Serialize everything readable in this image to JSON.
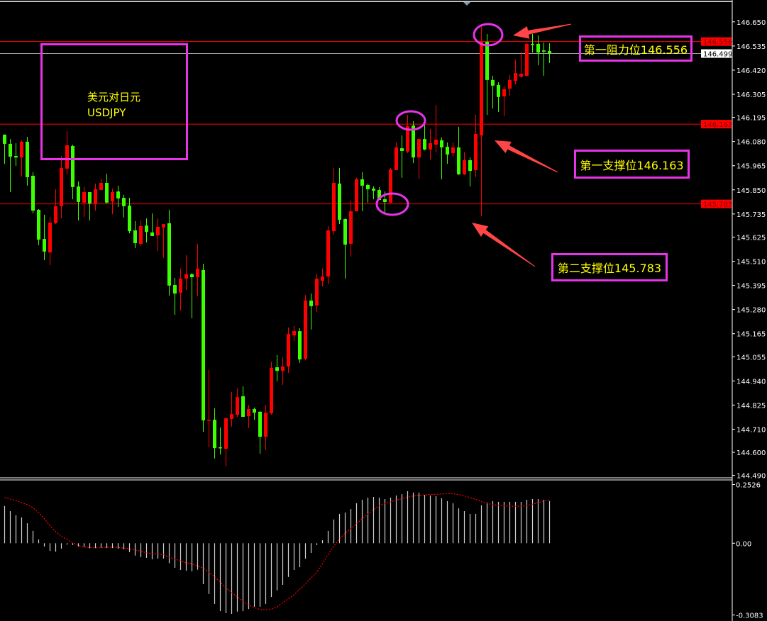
{
  "symbol": {
    "name_cn": "美元对日元",
    "ticker": "USDJPY"
  },
  "annotations": {
    "resistance_1": {
      "label": "第一阻力位146.556",
      "price": 146.556
    },
    "support_1": {
      "label": "第一支撑位146.163",
      "price": 146.163
    },
    "support_2": {
      "label": "第二支撑位145.783",
      "price": 145.783
    }
  },
  "colors": {
    "background": "#000000",
    "bull_candle": "#ff0000",
    "bear_candle": "#3cff00",
    "level_line": "#ff0000",
    "bid_line": "#a0a0a0",
    "annotation_box": "#e834e8",
    "annotation_text": "#ffff00",
    "arrow": "#ff4545",
    "macd_histogram": "#d0d0d0",
    "macd_signal": "#ff0000",
    "axis_text": "#ffffff"
  },
  "chart_data": [
    {
      "type": "candlestick",
      "symbol": "USDJPY",
      "ylim": [
        144.482,
        146.754
      ],
      "y_ticks": [
        146.65,
        146.535,
        146.42,
        146.305,
        146.195,
        146.08,
        145.965,
        145.85,
        145.735,
        145.625,
        145.51,
        145.395,
        145.28,
        145.165,
        145.055,
        144.94,
        144.825,
        144.71,
        144.6,
        144.49
      ],
      "price_tags": [
        {
          "value": "146.556",
          "style": "red"
        },
        {
          "value": "146.499",
          "style": "white"
        },
        {
          "value": "146.163",
          "style": "red"
        },
        {
          "value": "145.783",
          "style": "red"
        }
      ],
      "horizontal_lines": [
        {
          "price": 146.556,
          "color": "#ff0000"
        },
        {
          "price": 146.499,
          "color": "#a0a0a0"
        },
        {
          "price": 146.163,
          "color": "#ff0000"
        },
        {
          "price": 145.783,
          "color": "#ff0000"
        }
      ],
      "ohlc_fields": [
        "open",
        "high",
        "low",
        "close"
      ],
      "candles": [
        [
          146.113,
          146.113,
          145.974,
          146.069
        ],
        [
          146.069,
          146.092,
          145.839,
          146.008
        ],
        [
          146.011,
          146.072,
          145.964,
          146.004
        ],
        [
          146.004,
          146.086,
          145.913,
          146.079
        ],
        [
          146.079,
          146.102,
          145.87,
          145.91
        ],
        [
          145.917,
          145.934,
          145.738,
          145.751
        ],
        [
          145.755,
          145.758,
          145.586,
          145.613
        ],
        [
          145.616,
          145.731,
          145.515,
          145.556
        ],
        [
          145.552,
          145.721,
          145.491,
          145.694
        ],
        [
          145.691,
          145.853,
          145.687,
          145.772
        ],
        [
          145.772,
          146.011,
          145.714,
          145.954
        ],
        [
          145.951,
          146.129,
          145.924,
          146.062
        ],
        [
          146.059,
          146.065,
          145.805,
          145.863
        ],
        [
          145.866,
          145.89,
          145.704,
          145.792
        ],
        [
          145.789,
          145.863,
          145.721,
          145.839
        ],
        [
          145.839,
          145.839,
          145.704,
          145.785
        ],
        [
          145.785,
          145.88,
          145.751,
          145.853
        ],
        [
          145.849,
          145.903,
          145.849,
          145.883
        ],
        [
          145.883,
          145.927,
          145.785,
          145.789
        ],
        [
          145.795,
          145.856,
          145.734,
          145.839
        ],
        [
          145.842,
          145.87,
          145.768,
          145.809
        ],
        [
          145.812,
          145.826,
          145.718,
          145.772
        ],
        [
          145.775,
          145.812,
          145.643,
          145.653
        ],
        [
          145.657,
          145.701,
          145.572,
          145.596
        ],
        [
          145.593,
          145.704,
          145.583,
          145.677
        ],
        [
          145.68,
          145.714,
          145.599,
          145.65
        ],
        [
          145.647,
          145.738,
          145.63,
          145.63
        ],
        [
          145.633,
          145.714,
          145.559,
          145.674
        ],
        [
          145.67,
          145.687,
          145.525,
          145.687
        ],
        [
          145.691,
          145.755,
          145.346,
          145.394
        ],
        [
          145.397,
          145.431,
          145.255,
          145.356
        ],
        [
          145.36,
          145.475,
          145.275,
          145.427
        ],
        [
          145.427,
          145.539,
          145.373,
          145.448
        ],
        [
          145.448,
          145.454,
          145.238,
          145.434
        ],
        [
          145.434,
          145.593,
          145.343,
          145.475
        ],
        [
          145.468,
          145.498,
          144.698,
          144.752
        ],
        [
          144.752,
          144.992,
          144.624,
          144.755
        ],
        [
          144.755,
          144.809,
          144.57,
          144.62
        ],
        [
          144.624,
          144.718,
          144.59,
          144.62
        ],
        [
          144.617,
          144.766,
          144.533,
          144.762
        ],
        [
          144.759,
          144.887,
          144.722,
          144.782
        ],
        [
          144.779,
          144.904,
          144.769,
          144.863
        ],
        [
          144.867,
          144.914,
          144.769,
          144.769
        ],
        [
          144.772,
          144.826,
          144.715,
          144.806
        ],
        [
          144.806,
          144.813,
          144.755,
          144.789
        ],
        [
          144.793,
          144.796,
          144.593,
          144.674
        ],
        [
          144.674,
          144.826,
          144.61,
          144.789
        ],
        [
          144.786,
          145.032,
          144.779,
          145.002
        ],
        [
          145.005,
          145.063,
          144.938,
          144.988
        ],
        [
          144.988,
          145.053,
          144.921,
          145.009
        ],
        [
          145.009,
          145.194,
          144.978,
          145.164
        ],
        [
          145.157,
          145.201,
          145.13,
          145.177
        ],
        [
          145.177,
          145.191,
          145.025,
          145.042
        ],
        [
          145.046,
          145.35,
          145.039,
          145.323
        ],
        [
          145.323,
          145.356,
          145.184,
          145.296
        ],
        [
          145.299,
          145.451,
          145.269,
          145.427
        ],
        [
          145.417,
          145.475,
          145.39,
          145.437
        ],
        [
          145.437,
          145.677,
          145.4,
          145.657
        ],
        [
          145.653,
          145.954,
          145.637,
          145.883
        ],
        [
          145.88,
          145.954,
          145.687,
          145.707
        ],
        [
          145.711,
          145.714,
          145.427,
          145.589
        ],
        [
          145.593,
          145.799,
          145.532,
          145.748
        ],
        [
          145.748,
          145.907,
          145.748,
          145.9
        ],
        [
          145.9,
          145.934,
          145.748,
          145.87
        ],
        [
          145.873,
          145.88,
          145.789,
          145.853
        ],
        [
          145.856,
          145.866,
          145.805,
          145.846
        ],
        [
          145.849,
          145.863,
          145.802,
          145.802
        ],
        [
          145.805,
          145.842,
          145.741,
          145.792
        ],
        [
          145.789,
          145.954,
          145.785,
          145.947
        ],
        [
          145.944,
          146.075,
          145.944,
          146.052
        ],
        [
          146.048,
          146.109,
          145.907,
          146.035
        ],
        [
          146.032,
          146.207,
          146.025,
          146.153
        ],
        [
          146.156,
          146.177,
          145.977,
          146.004
        ],
        [
          146.004,
          146.092,
          145.903,
          146.092
        ],
        [
          146.092,
          146.16,
          146.038,
          146.042
        ],
        [
          146.042,
          146.14,
          145.994,
          146.072
        ],
        [
          146.065,
          146.254,
          146.028,
          146.089
        ],
        [
          146.086,
          146.099,
          145.9,
          146.052
        ],
        [
          146.055,
          146.075,
          145.974,
          146.018
        ],
        [
          146.025,
          146.075,
          146.008,
          146.052
        ],
        [
          146.052,
          146.15,
          145.92,
          145.924
        ],
        [
          145.924,
          146.028,
          145.92,
          145.991
        ],
        [
          145.991,
          146.004,
          145.866,
          145.94
        ],
        [
          145.944,
          146.207,
          145.91,
          146.116
        ],
        [
          146.109,
          146.626,
          145.724,
          146.558
        ],
        [
          146.555,
          146.592,
          146.207,
          146.373
        ],
        [
          146.373,
          146.393,
          146.237,
          146.346
        ],
        [
          146.349,
          146.362,
          146.221,
          146.292
        ],
        [
          146.295,
          146.342,
          146.2,
          146.329
        ],
        [
          146.332,
          146.396,
          146.298,
          146.373
        ],
        [
          146.369,
          146.47,
          146.352,
          146.406
        ],
        [
          146.389,
          146.508,
          146.383,
          146.403
        ],
        [
          146.393,
          146.551,
          146.389,
          146.545
        ],
        [
          146.545,
          146.592,
          146.504,
          146.541
        ],
        [
          146.545,
          146.585,
          146.443,
          146.504
        ],
        [
          146.514,
          146.551,
          146.393,
          146.508
        ],
        [
          146.511,
          146.548,
          146.454,
          146.499
        ]
      ]
    },
    {
      "type": "bar+line",
      "indicator": "MACD",
      "ylim": [
        -0.3083,
        0.2526
      ],
      "y_ticks": [
        "0.2526",
        "0.00",
        "-0.3083"
      ],
      "histogram": [
        0.16,
        0.138,
        0.12,
        0.111,
        0.086,
        0.053,
        0.016,
        -0.014,
        -0.033,
        -0.036,
        -0.023,
        -0.006,
        -0.008,
        -0.014,
        -0.015,
        -0.022,
        -0.021,
        -0.019,
        -0.021,
        -0.021,
        -0.023,
        -0.026,
        -0.038,
        -0.053,
        -0.06,
        -0.063,
        -0.069,
        -0.066,
        -0.066,
        -0.086,
        -0.106,
        -0.115,
        -0.118,
        -0.121,
        -0.114,
        -0.176,
        -0.218,
        -0.261,
        -0.292,
        -0.301,
        -0.304,
        -0.294,
        -0.292,
        -0.283,
        -0.273,
        -0.273,
        -0.261,
        -0.231,
        -0.203,
        -0.179,
        -0.145,
        -0.115,
        -0.103,
        -0.066,
        -0.042,
        -0.008,
        0.013,
        0.053,
        0.102,
        0.126,
        0.132,
        0.147,
        0.172,
        0.187,
        0.196,
        0.199,
        0.196,
        0.19,
        0.196,
        0.205,
        0.211,
        0.224,
        0.218,
        0.218,
        0.208,
        0.205,
        0.202,
        0.193,
        0.181,
        0.172,
        0.15,
        0.138,
        0.126,
        0.126,
        0.163,
        0.175,
        0.181,
        0.178,
        0.178,
        0.178,
        0.178,
        0.178,
        0.187,
        0.19,
        0.19,
        0.187,
        0.181
      ],
      "signal": [
        0.197,
        0.19,
        0.183,
        0.175,
        0.166,
        0.153,
        0.132,
        0.105,
        0.075,
        0.05,
        0.03,
        0.016,
        0.002,
        -0.01,
        -0.016,
        -0.019,
        -0.02,
        -0.019,
        -0.017,
        -0.017,
        -0.018,
        -0.021,
        -0.024,
        -0.029,
        -0.034,
        -0.041,
        -0.045,
        -0.046,
        -0.049,
        -0.06,
        -0.068,
        -0.076,
        -0.084,
        -0.089,
        -0.097,
        -0.108,
        -0.124,
        -0.144,
        -0.168,
        -0.192,
        -0.212,
        -0.231,
        -0.249,
        -0.265,
        -0.277,
        -0.285,
        -0.287,
        -0.283,
        -0.274,
        -0.255,
        -0.239,
        -0.221,
        -0.198,
        -0.175,
        -0.149,
        -0.124,
        -0.088,
        -0.048,
        -0.012,
        0.018,
        0.044,
        0.062,
        0.084,
        0.105,
        0.125,
        0.145,
        0.161,
        0.171,
        0.178,
        0.186,
        0.191,
        0.198,
        0.203,
        0.206,
        0.208,
        0.21,
        0.21,
        0.212,
        0.213,
        0.213,
        0.209,
        0.204,
        0.196,
        0.189,
        0.179,
        0.171,
        0.166,
        0.164,
        0.161,
        0.159,
        0.159,
        0.159,
        0.162,
        0.168,
        0.174,
        0.182,
        0.186
      ]
    }
  ]
}
